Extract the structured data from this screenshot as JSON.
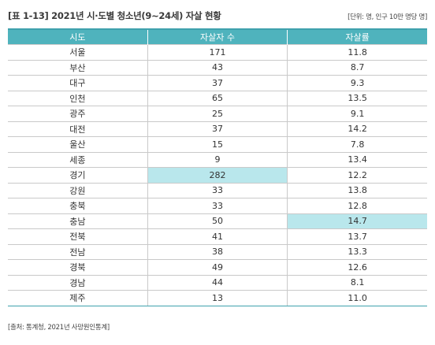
{
  "title": "[표 1-13] 2021년 시·도별 청소년(9~24세) 자살 현황",
  "unit_note": "[단위: 명, 인구 10만 명당 명]",
  "table": {
    "headers": [
      "시도",
      "자살자 수",
      "자살률"
    ],
    "rows": [
      {
        "region": "서울",
        "count": "171",
        "rate": "11.8"
      },
      {
        "region": "부산",
        "count": "43",
        "rate": "8.7"
      },
      {
        "region": "대구",
        "count": "37",
        "rate": "9.3"
      },
      {
        "region": "인천",
        "count": "65",
        "rate": "13.5"
      },
      {
        "region": "광주",
        "count": "25",
        "rate": "9.1"
      },
      {
        "region": "대전",
        "count": "37",
        "rate": "14.2"
      },
      {
        "region": "울산",
        "count": "15",
        "rate": "7.8"
      },
      {
        "region": "세종",
        "count": "9",
        "rate": "13.4"
      },
      {
        "region": "경기",
        "count": "282",
        "rate": "12.2",
        "highlight": "count"
      },
      {
        "region": "강원",
        "count": "33",
        "rate": "13.8"
      },
      {
        "region": "충북",
        "count": "33",
        "rate": "12.8"
      },
      {
        "region": "충남",
        "count": "50",
        "rate": "14.7",
        "highlight": "rate"
      },
      {
        "region": "전북",
        "count": "41",
        "rate": "13.7"
      },
      {
        "region": "전남",
        "count": "38",
        "rate": "13.3"
      },
      {
        "region": "경북",
        "count": "49",
        "rate": "12.6"
      },
      {
        "region": "경남",
        "count": "44",
        "rate": "8.1"
      },
      {
        "region": "제주",
        "count": "13",
        "rate": "11.0"
      }
    ]
  },
  "source": "[출처: 통계청, 2021년 사망원인통계]",
  "colors": {
    "header_bg": "#4fb3bd",
    "rule": "#3fa1ad",
    "highlight_bg": "#b9e7ec"
  }
}
